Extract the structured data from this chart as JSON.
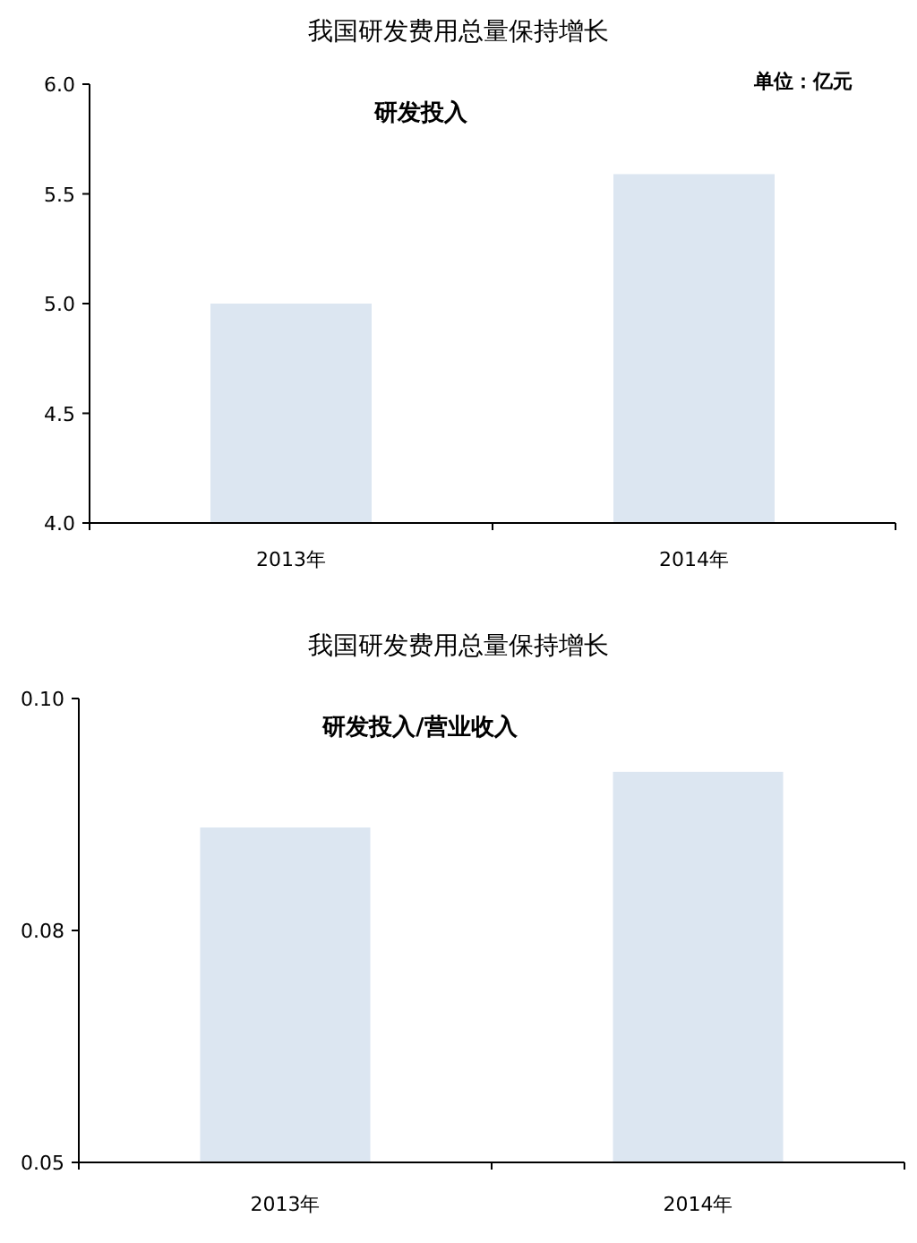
{
  "chart_data": [
    {
      "type": "bar",
      "title": "我国研发费用总量保持增长",
      "subtitle": "研发投入",
      "annotations": [
        "单位：亿元"
      ],
      "categories": [
        "2013年",
        "2014年"
      ],
      "values": [
        5.0,
        5.59
      ],
      "color": "#dce6f1",
      "ylim": [
        4.0,
        6.0
      ],
      "yticks": [
        {
          "value": 4,
          "label": "4.0"
        },
        {
          "value": 4.5,
          "label": "4.5"
        },
        {
          "value": 5,
          "label": "5.0"
        },
        {
          "value": 5.5,
          "label": "5.5"
        },
        {
          "value": 6,
          "label": "6.0"
        }
      ],
      "grid": false
    },
    {
      "type": "bar",
      "title": "我国研发费用总量保持增长",
      "subtitle": "研发投入/营业收入",
      "categories": [
        "2013年",
        "2014年"
      ],
      "values": [
        0.0861,
        0.0921
      ],
      "color": "#dce6f1",
      "ylim": [
        0.05,
        0.1
      ],
      "yticks": [
        {
          "value": 0.05,
          "label": "0.05"
        },
        {
          "value": 0.075,
          "label": "0.08"
        },
        {
          "value": 0.1,
          "label": "0.10"
        }
      ],
      "grid": false
    }
  ]
}
